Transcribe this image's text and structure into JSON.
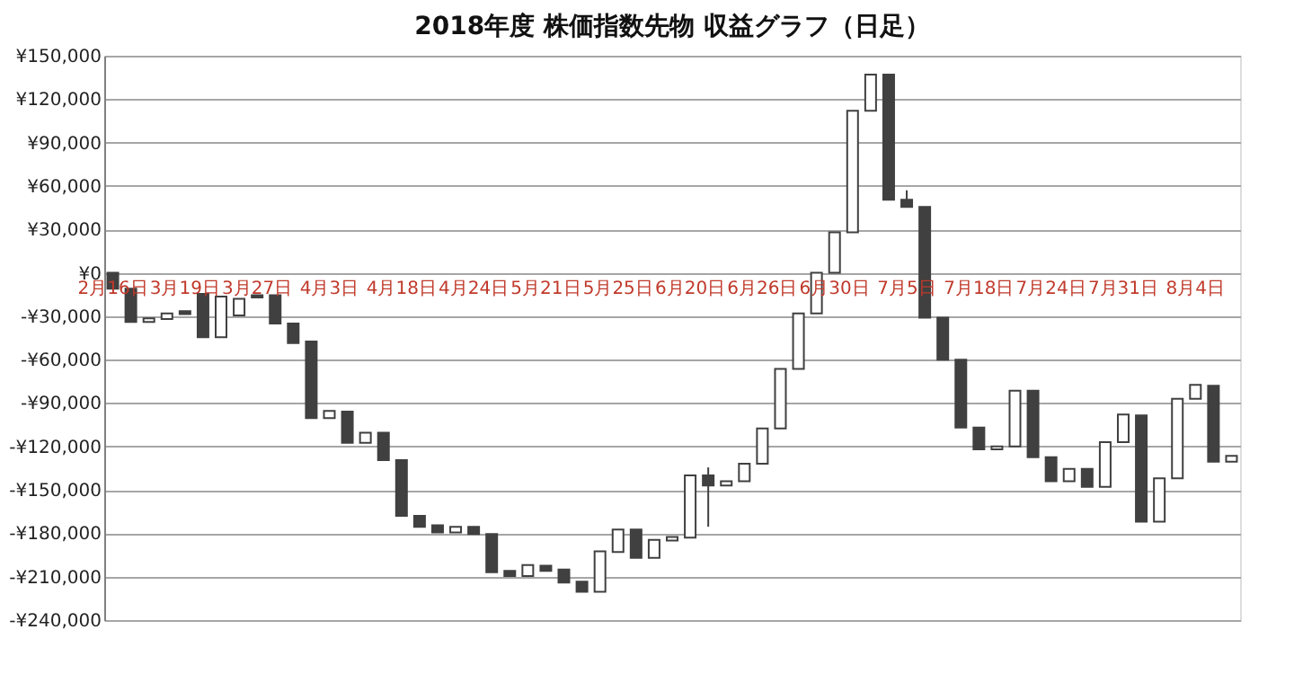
{
  "chart_data": {
    "type": "candlestick",
    "title": "2018年度 株価指数先物 収益グラフ（日足）",
    "categories": [
      "2月16日",
      null,
      null,
      null,
      "3月19日",
      null,
      null,
      null,
      "3月27日",
      null,
      null,
      null,
      "4月3日",
      null,
      null,
      null,
      "4月18日",
      null,
      null,
      null,
      "4月24日",
      null,
      null,
      null,
      "5月21日",
      null,
      null,
      null,
      "5月25日",
      null,
      null,
      null,
      "6月20日",
      null,
      null,
      null,
      "6月26日",
      null,
      null,
      null,
      "6月30日",
      null,
      null,
      null,
      "7月5日",
      null,
      null,
      null,
      "7月18日",
      null,
      null,
      null,
      "7月24日",
      null,
      null,
      null,
      "7月31日",
      null,
      null,
      null,
      "8月4日",
      null,
      null
    ],
    "ohlc": [
      [
        0,
        0,
        -11000,
        -11000
      ],
      [
        -11000,
        -11000,
        -34000,
        -34000
      ],
      [
        -34000,
        -31500,
        -34000,
        -31500
      ],
      [
        -32000,
        -28000,
        -32000,
        -28000
      ],
      [
        -26500,
        -26500,
        -28500,
        -28500
      ],
      [
        -14500,
        -14500,
        -44500,
        -44500
      ],
      [
        -44500,
        -16500,
        -44500,
        -16500
      ],
      [
        -29500,
        -18000,
        -29500,
        -18000
      ],
      [
        -15500,
        -15500,
        -17000,
        -17000
      ],
      [
        -15500,
        -15500,
        -35000,
        -35000
      ],
      [
        -35000,
        -35000,
        -48500,
        -48500
      ],
      [
        -47500,
        -47500,
        -100500,
        -100500
      ],
      [
        -100500,
        -95500,
        -100500,
        -95500
      ],
      [
        -96000,
        -96000,
        -117500,
        -117500
      ],
      [
        -117500,
        -110500,
        -117500,
        -110500
      ],
      [
        -110500,
        -110500,
        -129500,
        -129500
      ],
      [
        -129500,
        -129500,
        -168000,
        -168000
      ],
      [
        -168000,
        -168000,
        -175500,
        -175500
      ],
      [
        -174500,
        -174500,
        -179500,
        -179500
      ],
      [
        -179500,
        -175500,
        -179500,
        -175500
      ],
      [
        -175500,
        -175500,
        -180500,
        -180500
      ],
      [
        -180500,
        -180500,
        -207000,
        -207000
      ],
      [
        -206000,
        -206000,
        -209500,
        -209500
      ],
      [
        -209500,
        -202000,
        -209500,
        -202000
      ],
      [
        -202500,
        -202500,
        -206000,
        -206000
      ],
      [
        -205000,
        -205000,
        -214000,
        -214000
      ],
      [
        -213500,
        -213500,
        -220500,
        -220500
      ],
      [
        -220500,
        -192500,
        -220500,
        -192500
      ],
      [
        -193000,
        -177500,
        -193000,
        -177500
      ],
      [
        -177500,
        -177500,
        -197000,
        -197000
      ],
      [
        -197000,
        -184500,
        -197000,
        -184500
      ],
      [
        -185000,
        -182500,
        -185000,
        -182500
      ],
      [
        -183000,
        -140000,
        -183000,
        -140000
      ],
      [
        -140000,
        -134500,
        -175500,
        -147000
      ],
      [
        -147000,
        -144000,
        -147000,
        -144000
      ],
      [
        -144000,
        -132000,
        -144000,
        -132000
      ],
      [
        -132000,
        -107500,
        -132000,
        -107500
      ],
      [
        -107500,
        -66500,
        -107500,
        -66500
      ],
      [
        -66500,
        -28000,
        -66500,
        -28000
      ],
      [
        -28000,
        0,
        -28000,
        0
      ],
      [
        0,
        28000,
        0,
        28000
      ],
      [
        28000,
        112000,
        28000,
        112000
      ],
      [
        112000,
        137000,
        112000,
        137000
      ],
      [
        137000,
        137000,
        50500,
        50500
      ],
      [
        50500,
        57000,
        45500,
        45500
      ],
      [
        45500,
        45500,
        -31000,
        -31000
      ],
      [
        -31000,
        -31000,
        -60000,
        -60000
      ],
      [
        -60000,
        -60000,
        -107000,
        -107000
      ],
      [
        -107000,
        -107000,
        -122000,
        -122000
      ],
      [
        -122000,
        -120000,
        -122000,
        -120000
      ],
      [
        -120000,
        -81500,
        -120000,
        -81500
      ],
      [
        -81500,
        -81500,
        -127500,
        -127500
      ],
      [
        -127500,
        -127500,
        -144000,
        -144000
      ],
      [
        -144000,
        -135500,
        -144000,
        -135500
      ],
      [
        -135500,
        -135500,
        -148000,
        -148000
      ],
      [
        -148000,
        -117000,
        -148000,
        -117000
      ],
      [
        -117000,
        -98000,
        -117000,
        -98000
      ],
      [
        -98500,
        -98500,
        -172000,
        -172000
      ],
      [
        -172000,
        -142000,
        -172000,
        -142000
      ],
      [
        -142000,
        -87000,
        -142000,
        -87000
      ],
      [
        -87000,
        -77500,
        -87000,
        -77500
      ],
      [
        -78000,
        -78000,
        -130500,
        -130500
      ],
      [
        -130500,
        -126500,
        -130500,
        -126500
      ]
    ],
    "colors": [
      "#404040",
      "#404040",
      "#ffffff",
      "#ffffff",
      "#404040",
      "#404040",
      "#ffffff",
      "#ffffff",
      "#404040",
      "#404040",
      "#404040",
      "#404040",
      "#ffffff",
      "#404040",
      "#ffffff",
      "#404040",
      "#404040",
      "#404040",
      "#404040",
      "#ffffff",
      "#404040",
      "#404040",
      "#404040",
      "#ffffff",
      "#404040",
      "#404040",
      "#404040",
      "#ffffff",
      "#ffffff",
      "#404040",
      "#ffffff",
      "#ffffff",
      "#ffffff",
      "#404040",
      "#ffffff",
      "#ffffff",
      "#ffffff",
      "#ffffff",
      "#ffffff",
      "#ffffff",
      "#ffffff",
      "#ffffff",
      "#ffffff",
      "#404040",
      "#404040",
      "#404040",
      "#404040",
      "#404040",
      "#404040",
      "#ffffff",
      "#ffffff",
      "#404040",
      "#404040",
      "#ffffff",
      "#404040",
      "#ffffff",
      "#ffffff",
      "#404040",
      "#ffffff",
      "#ffffff",
      "#ffffff",
      "#404040",
      "#ffffff"
    ],
    "ylim": [
      -240000,
      150000
    ],
    "yticks": [
      {
        "value": 150000,
        "label": "¥150,000"
      },
      {
        "value": 120000,
        "label": "¥120,000"
      },
      {
        "value": 90000,
        "label": "¥90,000"
      },
      {
        "value": 60000,
        "label": "¥60,000"
      },
      {
        "value": 30000,
        "label": "¥30,000"
      },
      {
        "value": 0,
        "label": "¥0"
      },
      {
        "value": -30000,
        "label": "-¥30,000"
      },
      {
        "value": -60000,
        "label": "-¥60,000"
      },
      {
        "value": -90000,
        "label": "-¥90,000"
      },
      {
        "value": -120000,
        "label": "-¥120,000"
      },
      {
        "value": -150000,
        "label": "-¥150,000"
      },
      {
        "value": -180000,
        "label": "-¥180,000"
      },
      {
        "value": -210000,
        "label": "-¥210,000"
      },
      {
        "value": -240000,
        "label": "-¥240,000"
      }
    ],
    "grid": "y"
  }
}
